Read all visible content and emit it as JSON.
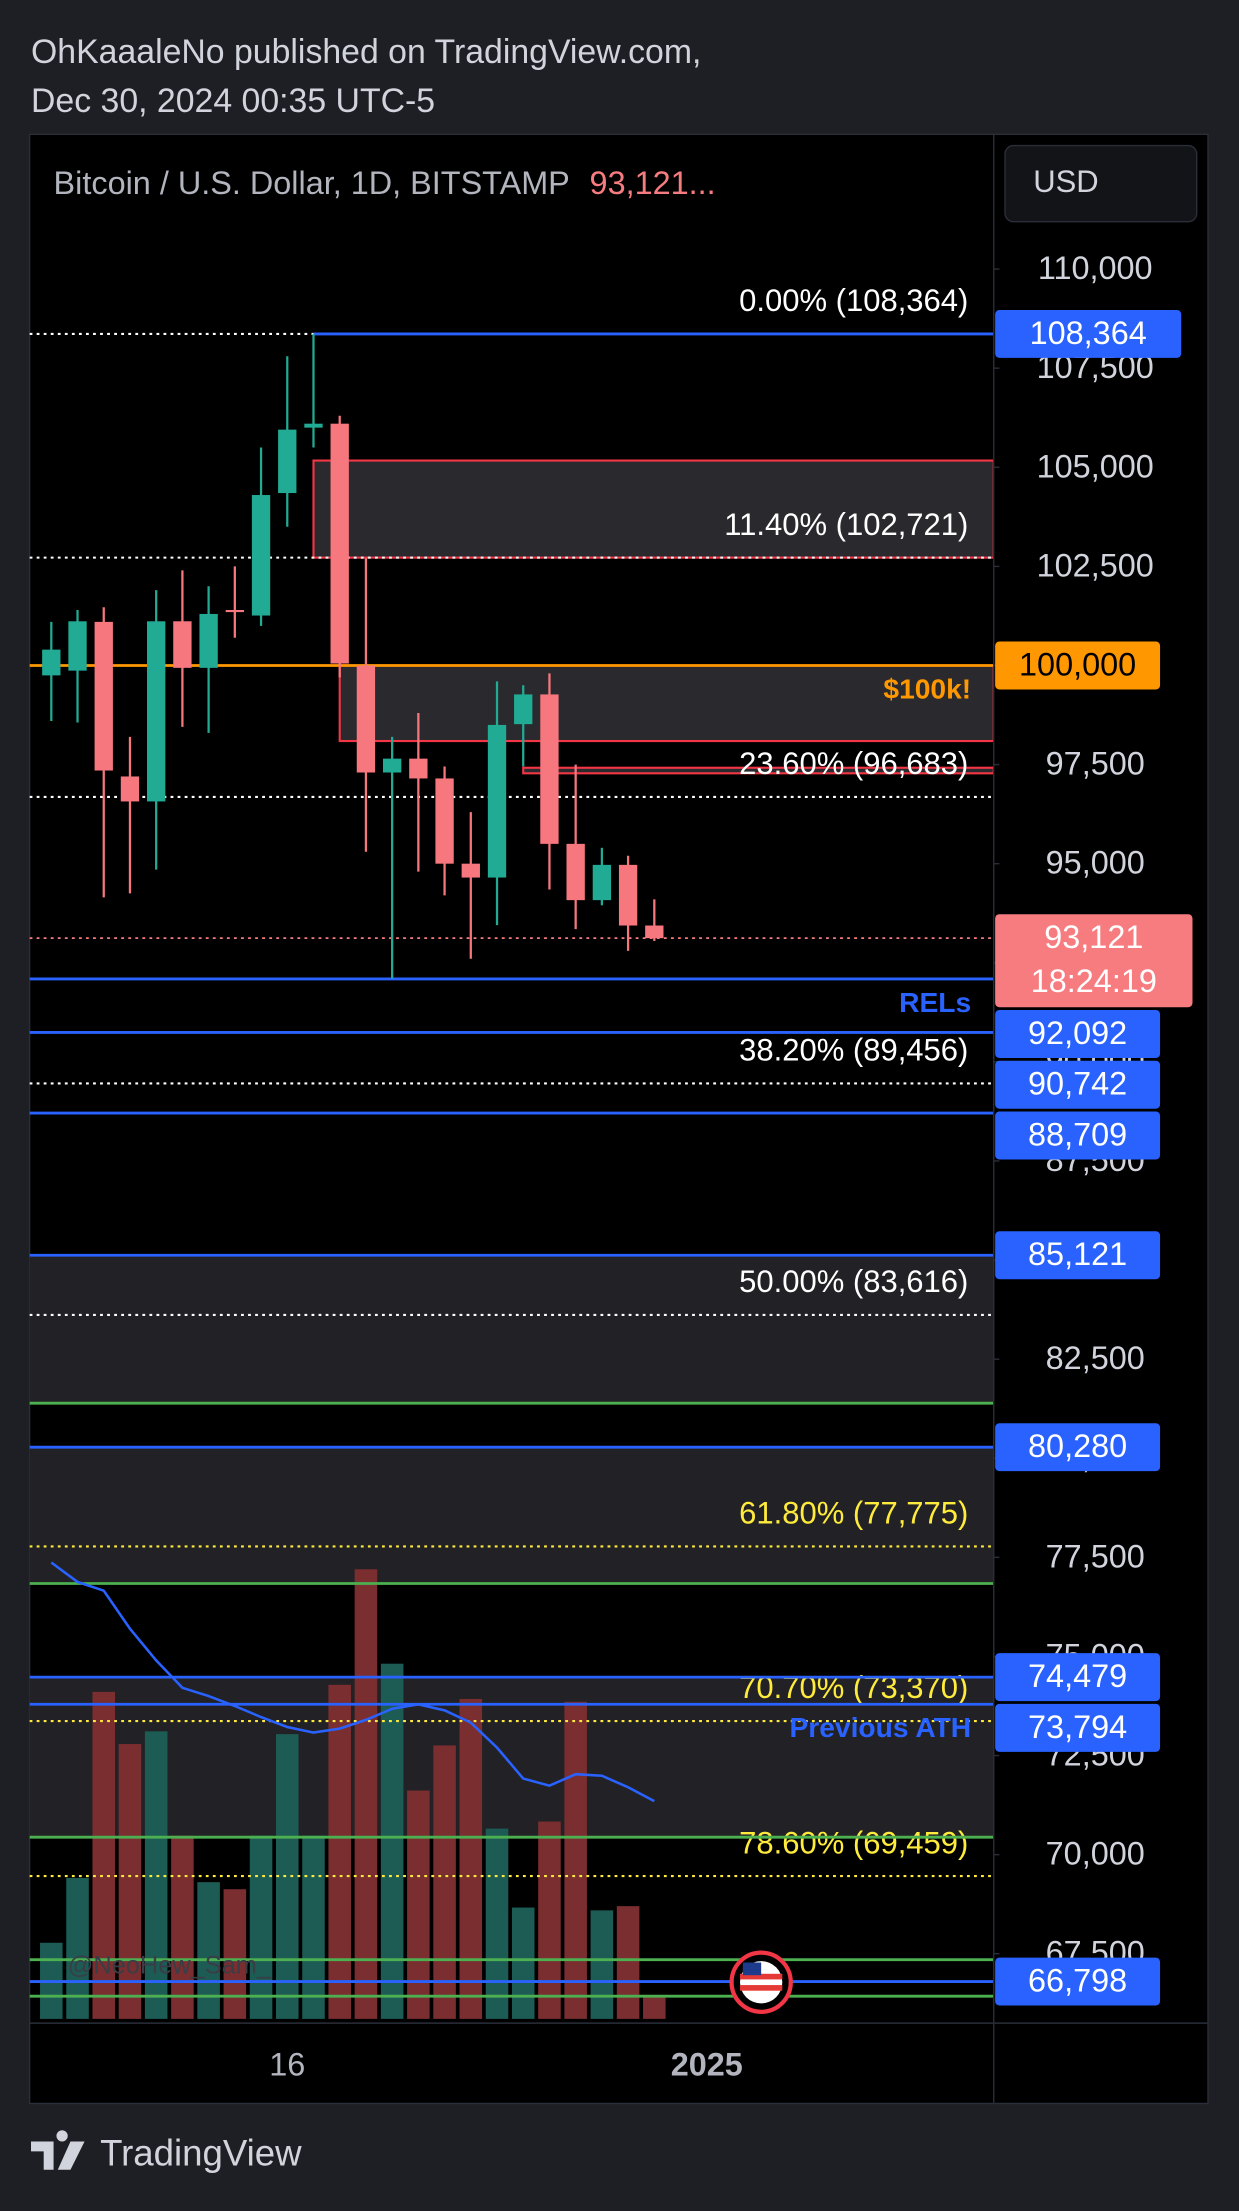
{
  "header": {
    "author_line": "OhKaaaleNo published on TradingView.com,",
    "date_line": "Dec 30, 2024 00:35 UTC-5"
  },
  "footer": {
    "brand": "TradingView"
  },
  "chart_data": {
    "type": "candlestick",
    "title": "Bitcoin / U.S. Dollar, 1D, BITSTAMP",
    "last_price_label": "93,121...",
    "currency": "USD",
    "watermark": "@NeoHew_Sam_",
    "categories": [
      null,
      null,
      null,
      null,
      null,
      null,
      null,
      null,
      null,
      "16",
      null,
      null,
      null,
      null,
      null,
      null,
      null,
      null,
      null,
      null,
      null,
      null,
      null,
      null,
      null,
      "2025"
    ],
    "open": [
      99750,
      99870,
      101100,
      97200,
      96570,
      101115,
      99940,
      101400,
      101260,
      104350,
      106000,
      106100,
      100000,
      97300,
      97650,
      97150,
      95000,
      94650,
      98520,
      99270,
      95500,
      94080,
      94970,
      93440,
      null,
      null
    ],
    "high": [
      101100,
      101400,
      101470,
      98200,
      101900,
      102400,
      102000,
      102500,
      105500,
      107800,
      108364,
      106300,
      102700,
      98200,
      98800,
      97450,
      96300,
      99600,
      99500,
      99800,
      97500,
      95400,
      95200,
      94100,
      null,
      null
    ],
    "low": [
      98600,
      98560,
      94150,
      94250,
      94850,
      98450,
      98300,
      100700,
      101000,
      103500,
      105500,
      99700,
      95300,
      92100,
      94800,
      94200,
      92600,
      93450,
      97450,
      94350,
      93350,
      93950,
      92800,
      93050,
      null,
      null
    ],
    "close": [
      100400,
      101115,
      97350,
      96570,
      101115,
      99940,
      101300,
      101350,
      104300,
      105950,
      106100,
      100050,
      97300,
      97650,
      97150,
      95000,
      94650,
      98500,
      99270,
      95500,
      94080,
      94970,
      93440,
      93121,
      null,
      null
    ],
    "up_color": "#22ab94",
    "down_color": "#f7777f",
    "volume": {
      "values": [
        54,
        100,
        232,
        195,
        204,
        130,
        97,
        92,
        130,
        202,
        130,
        237,
        319,
        252,
        162,
        194,
        227,
        135,
        79,
        140,
        225,
        77,
        80,
        17,
        null,
        null
      ],
      "up_color": "#1c5c55",
      "down_color": "#7a2e30"
    },
    "moving_average": {
      "values": [
        77370,
        76880,
        76660,
        75700,
        74900,
        74210,
        74000,
        73750,
        73470,
        73220,
        73080,
        73180,
        73400,
        73680,
        73790,
        73640,
        73330,
        72700,
        71920,
        71740,
        72030,
        71990,
        71700,
        71350,
        null,
        null
      ],
      "color": "#2962ff"
    },
    "ylim": [
      65750,
      113400
    ],
    "yticks": [
      {
        "value": 110000,
        "label": "110,000"
      },
      {
        "value": 107500,
        "label": "107,500"
      },
      {
        "value": 105000,
        "label": "105,000"
      },
      {
        "value": 102500,
        "label": "102,500"
      },
      {
        "value": 100000,
        "label": "100,000"
      },
      {
        "value": 97500,
        "label": "97,500"
      },
      {
        "value": 95000,
        "label": "95,000"
      },
      {
        "value": 92500,
        "label": "92,500"
      },
      {
        "value": 90000,
        "label": "90,000"
      },
      {
        "value": 87500,
        "label": "87,500"
      },
      {
        "value": 85000,
        "label": "85,000"
      },
      {
        "value": 82500,
        "label": "82,500"
      },
      {
        "value": 80000,
        "label": "80,000"
      },
      {
        "value": 77500,
        "label": "77,500"
      },
      {
        "value": 75000,
        "label": "75,000"
      },
      {
        "value": 72500,
        "label": "72,500"
      },
      {
        "value": 70000,
        "label": "70,000"
      },
      {
        "value": 67500,
        "label": "67,500"
      }
    ],
    "zones": [
      {
        "from": 105170,
        "to": 102721,
        "fill": "#2a2a2e",
        "border": "#f23645"
      },
      {
        "from": 100000,
        "to": 98094,
        "fill": "#2a2a2e",
        "border": "#f23645"
      },
      {
        "from": 97420,
        "to": 97280,
        "fill": "#2a2a2e",
        "border": "#f23645"
      },
      {
        "from": 85121,
        "to": 81390,
        "fill": "#222226"
      },
      {
        "from": 80280,
        "to": 76840,
        "fill": "#222226"
      },
      {
        "from": 74479,
        "to": 70440,
        "fill": "#222226"
      }
    ],
    "fib_levels": [
      {
        "value": 108364,
        "label": "0.00% (108,364)",
        "color": "#ffffff"
      },
      {
        "value": 102721,
        "label": "11.40% (102,721)",
        "color": "#ffffff"
      },
      {
        "value": 96683,
        "label": "23.60% (96,683)",
        "color": "#ffffff"
      },
      {
        "value": 89456,
        "label": "38.20% (89,456)",
        "color": "#ffffff"
      },
      {
        "value": 83616,
        "label": "50.00% (83,616)",
        "color": "#ffffff"
      },
      {
        "value": 77775,
        "label": "61.80% (77,775)",
        "color": "#ffeb3b"
      },
      {
        "value": 73370,
        "label": "70.70% (73,370)",
        "color": "#ffeb3b"
      },
      {
        "value": 69459,
        "label": "78.60% (69,459)",
        "color": "#ffeb3b"
      }
    ],
    "levels": [
      {
        "value": 108364,
        "color": "#2962ff"
      },
      {
        "value": 100000,
        "color": "#ff9800"
      },
      {
        "value": 92092,
        "color": "#2962ff"
      },
      {
        "value": 90742,
        "color": "#2962ff"
      },
      {
        "value": 88709,
        "color": "#2962ff"
      },
      {
        "value": 85121,
        "color": "#2962ff"
      },
      {
        "value": 81390,
        "color": "#4caf50"
      },
      {
        "value": 80280,
        "color": "#2962ff"
      },
      {
        "value": 76840,
        "color": "#4caf50"
      },
      {
        "value": 74479,
        "color": "#2962ff"
      },
      {
        "value": 73794,
        "color": "#2962ff"
      },
      {
        "value": 70440,
        "color": "#4caf50"
      },
      {
        "value": 67350,
        "color": "#4caf50"
      },
      {
        "value": 66798,
        "color": "#2962ff"
      },
      {
        "value": 66430,
        "color": "#4caf50"
      }
    ],
    "current_price": {
      "value": 93121,
      "color": "#f77c80"
    },
    "price_labels": [
      {
        "value": 108364,
        "label": "108,364",
        "color": "#2962ff"
      },
      {
        "value": 100000,
        "label": "100,000",
        "color": "#ff9800"
      },
      {
        "value": 93121,
        "label": "93,121",
        "sublabel": "18:24:19",
        "color": "#f77c80"
      },
      {
        "value": 92092,
        "label": "92,092",
        "color": "#2962ff"
      },
      {
        "value": 90742,
        "label": "90,742",
        "color": "#2962ff"
      },
      {
        "value": 88709,
        "label": "88,709",
        "color": "#2962ff"
      },
      {
        "value": 85121,
        "label": "85,121",
        "color": "#2962ff"
      },
      {
        "value": 80280,
        "label": "80,280",
        "color": "#2962ff"
      },
      {
        "value": 74479,
        "label": "74,479",
        "color": "#2962ff"
      },
      {
        "value": 73794,
        "label": "73,794",
        "color": "#2962ff"
      },
      {
        "value": 66798,
        "label": "66,798",
        "color": "#2962ff"
      }
    ],
    "annotations": [
      {
        "text": "$100k!",
        "value": 100000,
        "color": "#ff9800"
      },
      {
        "text": "RELs",
        "value": 92092,
        "color": "#2962ff"
      },
      {
        "text": "Previous ATH",
        "value": 73794,
        "color": "#2962ff"
      }
    ]
  }
}
